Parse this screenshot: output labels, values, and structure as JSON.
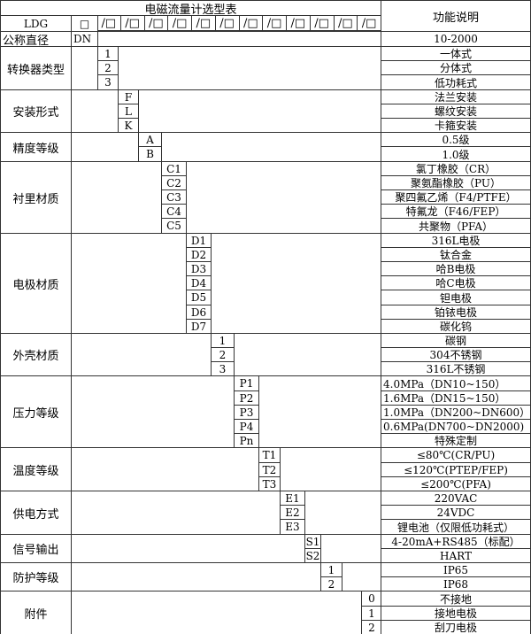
{
  "title": "电磁流量计选型表",
  "function_header": "功能说明",
  "model_prefix": "LDG",
  "model_first_box": "□",
  "model_boxes": [
    "/□",
    "/□",
    "/□",
    "/□",
    "/□",
    "/□",
    "/□",
    "/□",
    "/□",
    "/□",
    "/□",
    "/□"
  ],
  "nominal": {
    "label": "公称直径",
    "code": "DN",
    "desc": "10-2000"
  },
  "sections": [
    {
      "label": "转换器类型",
      "items": [
        {
          "code": "1",
          "desc": "一体式"
        },
        {
          "code": "2",
          "desc": "分体式"
        },
        {
          "code": "3",
          "desc": "低功耗式"
        }
      ]
    },
    {
      "label": "安装形式",
      "items": [
        {
          "code": "F",
          "desc": "法兰安装"
        },
        {
          "code": "L",
          "desc": "螺纹安装"
        },
        {
          "code": "K",
          "desc": "卡箍安装"
        }
      ]
    },
    {
      "label": "精度等级",
      "items": [
        {
          "code": "A",
          "desc": "0.5级"
        },
        {
          "code": "B",
          "desc": "1.0级"
        }
      ]
    },
    {
      "label": "衬里材质",
      "items": [
        {
          "code": "C1",
          "desc": "氯丁橡胶（CR）"
        },
        {
          "code": "C2",
          "desc": "聚氨酯橡胶（PU）"
        },
        {
          "code": "C3",
          "desc": "聚四氟乙烯（F4/PTFE）"
        },
        {
          "code": "C4",
          "desc": "特氟龙（F46/FEP）"
        },
        {
          "code": "C5",
          "desc": "共聚物（PFA）"
        }
      ]
    },
    {
      "label": "电极材质",
      "items": [
        {
          "code": "D1",
          "desc": "316L电极"
        },
        {
          "code": "D2",
          "desc": "钛合金"
        },
        {
          "code": "D3",
          "desc": "哈B电极"
        },
        {
          "code": "D4",
          "desc": "哈C电极"
        },
        {
          "code": "D5",
          "desc": "钽电极"
        },
        {
          "code": "D6",
          "desc": "铂铱电极"
        },
        {
          "code": "D7",
          "desc": "碳化钨"
        }
      ]
    },
    {
      "label": "外壳材质",
      "items": [
        {
          "code": "1",
          "desc": "碳钢"
        },
        {
          "code": "2",
          "desc": "304不锈钢"
        },
        {
          "code": "3",
          "desc": "316L不锈钢"
        }
      ]
    },
    {
      "label": "压力等级",
      "items": [
        {
          "code": "P1",
          "desc": "4.0MPa（DN10~150）",
          "left": true
        },
        {
          "code": "P2",
          "desc": "1.6MPa（DN15~150）",
          "left": true
        },
        {
          "code": "P3",
          "desc": "1.0MPa（DN200~DN600）",
          "left": true
        },
        {
          "code": "P4",
          "desc": "0.6MPa(DN700~DN2000)",
          "left": true
        },
        {
          "code": "Pn",
          "desc": "特殊定制"
        }
      ]
    },
    {
      "label": "温度等级",
      "items": [
        {
          "code": "T1",
          "desc": "≤80℃(CR/PU)"
        },
        {
          "code": "T2",
          "desc": "≤120℃(PTEP/FEP)"
        },
        {
          "code": "T3",
          "desc": "≤200℃(PFA)"
        }
      ]
    },
    {
      "label": "供电方式",
      "items": [
        {
          "code": "E1",
          "desc": "220VAC"
        },
        {
          "code": "E2",
          "desc": "24VDC"
        },
        {
          "code": "E3",
          "desc": "锂电池（仅限低功耗式）"
        }
      ]
    },
    {
      "label": "信号输出",
      "items": [
        {
          "code": "S1",
          "desc": "4-20mA+RS485（标配）"
        },
        {
          "code": "S2",
          "desc": "HART"
        }
      ]
    },
    {
      "label": "防护等级",
      "items": [
        {
          "code": "1",
          "desc": "IP65"
        },
        {
          "code": "2",
          "desc": "IP68"
        }
      ]
    },
    {
      "label": "附件",
      "items": [
        {
          "code": "0",
          "desc": "不接地"
        },
        {
          "code": "1",
          "desc": "接地电极"
        },
        {
          "code": "2",
          "desc": "刮刀电极"
        }
      ]
    }
  ]
}
